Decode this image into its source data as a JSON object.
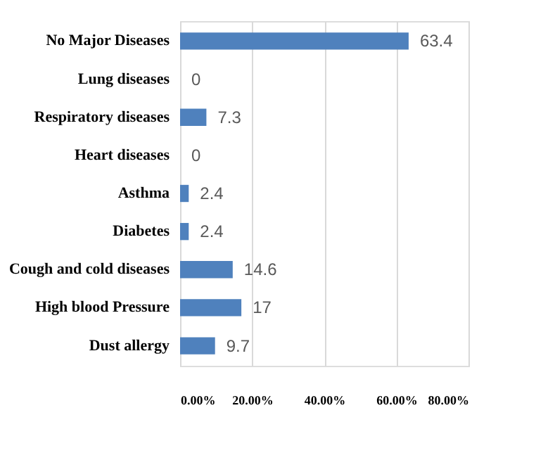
{
  "chart_data": {
    "type": "bar",
    "orientation": "horizontal",
    "categories": [
      "No Major Diseases",
      "Lung diseases",
      "Respiratory diseases",
      "Heart diseases",
      "Asthma",
      "Diabetes",
      "Cough and cold diseases",
      "High blood Pressure",
      "Dust allergy"
    ],
    "values": [
      63.4,
      0,
      7.3,
      0,
      2.4,
      2.4,
      14.6,
      17,
      9.7
    ],
    "color": "#4f81bd",
    "xlim": [
      0,
      80
    ],
    "xticks": [
      {
        "value": 0,
        "label": "0.00%"
      },
      {
        "value": 20,
        "label": "20.00%"
      },
      {
        "value": 40,
        "label": "40.00%"
      },
      {
        "value": 60,
        "label": "60.00%"
      },
      {
        "value": 80,
        "label": "80.00%"
      }
    ],
    "grid": "x",
    "data_labels": true
  }
}
